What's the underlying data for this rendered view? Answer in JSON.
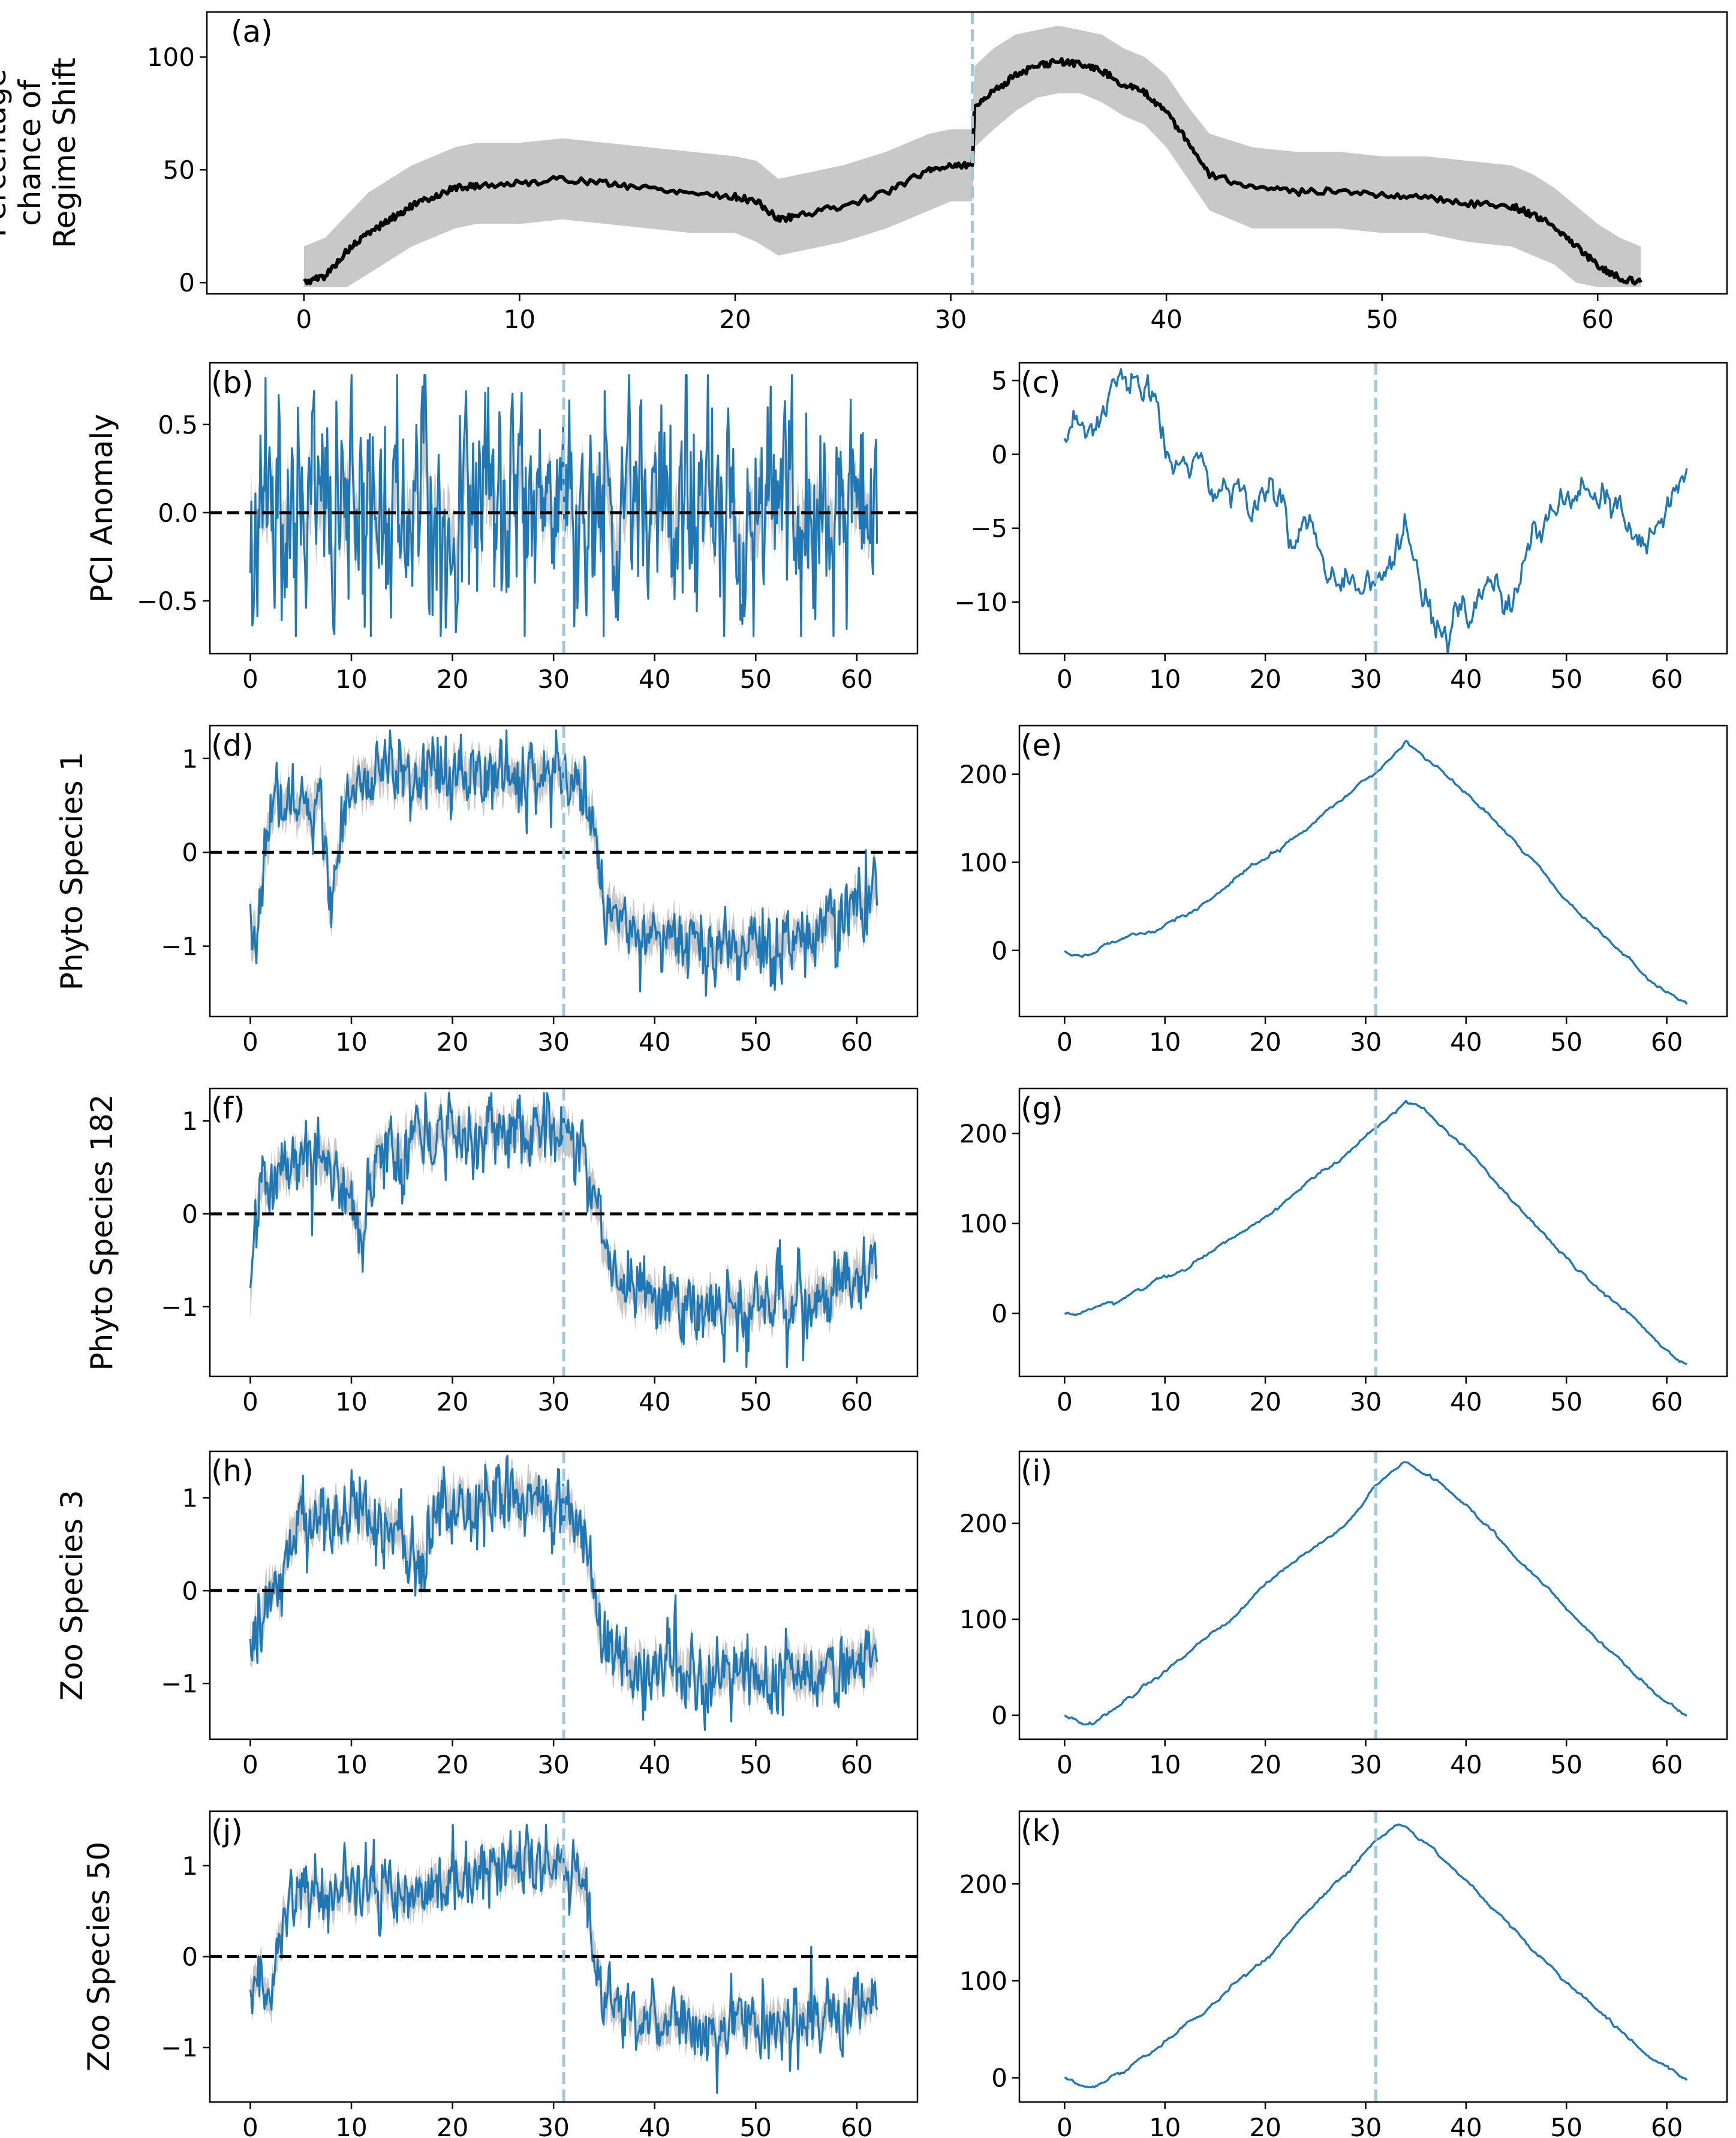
{
  "colors": {
    "series": "#1f77b4",
    "band": "#c8c8c8",
    "threshold": "#9ecae1",
    "axis": "#000000",
    "zero": "#000000"
  },
  "chart_data": [
    {
      "id": "a",
      "panel_label": "(a)",
      "type": "line",
      "ylabel_lines": [
        "Percentage",
        "chance of",
        "Regime Shift"
      ],
      "xlim": [
        -4.5,
        66
      ],
      "ylim": [
        -5,
        120
      ],
      "xticks": [
        0,
        10,
        20,
        30,
        40,
        50,
        60
      ],
      "yticks": [
        0,
        50,
        100
      ],
      "threshold_x": 31,
      "zero_line": false,
      "series": [
        {
          "name": "mean",
          "color": "#000000",
          "x": [
            0,
            1,
            2,
            3,
            4,
            5,
            6,
            7,
            8,
            10,
            12,
            14,
            16,
            18,
            20,
            21,
            22,
            23,
            25,
            27,
            29,
            30,
            31,
            31.1,
            32,
            33,
            34,
            35,
            36,
            37,
            38,
            39,
            40,
            41,
            42,
            44,
            46,
            48,
            50,
            52,
            54,
            56,
            57,
            58,
            59,
            60,
            61,
            62
          ],
          "y": [
            0,
            3,
            14,
            22,
            28,
            34,
            38,
            42,
            43,
            44,
            46,
            44,
            42,
            40,
            38,
            36,
            28,
            30,
            34,
            40,
            50,
            52,
            52,
            78,
            85,
            92,
            96,
            98,
            97,
            94,
            88,
            84,
            76,
            62,
            48,
            42,
            40,
            41,
            39,
            38,
            35,
            34,
            30,
            25,
            16,
            8,
            2,
            0
          ]
        }
      ],
      "band": {
        "x": [
          0,
          1,
          2,
          3,
          4,
          5,
          6,
          7,
          8,
          10,
          12,
          14,
          16,
          18,
          20,
          21,
          22,
          23,
          25,
          27,
          29,
          30,
          31,
          31.1,
          32,
          33,
          34,
          35,
          36,
          37,
          38,
          39,
          40,
          41,
          42,
          44,
          46,
          48,
          50,
          52,
          54,
          56,
          57,
          58,
          59,
          60,
          61,
          62
        ],
        "lower": [
          -2,
          -2,
          -2,
          4,
          10,
          16,
          20,
          24,
          26,
          26,
          28,
          26,
          24,
          22,
          22,
          18,
          12,
          14,
          18,
          24,
          32,
          36,
          36,
          60,
          68,
          76,
          82,
          84,
          84,
          80,
          74,
          70,
          60,
          46,
          32,
          24,
          24,
          24,
          22,
          22,
          18,
          16,
          12,
          8,
          0,
          -2,
          -2,
          -2
        ],
        "upper": [
          16,
          20,
          30,
          40,
          46,
          52,
          56,
          60,
          62,
          62,
          64,
          62,
          60,
          58,
          56,
          54,
          46,
          48,
          52,
          58,
          66,
          68,
          68,
          96,
          104,
          110,
          112,
          114,
          112,
          110,
          104,
          100,
          92,
          78,
          66,
          60,
          58,
          58,
          56,
          56,
          54,
          52,
          48,
          42,
          34,
          26,
          20,
          16
        ]
      },
      "linewidth": 6
    },
    {
      "id": "b",
      "panel_label": "(b)",
      "type": "line",
      "ylabel_lines": [
        "PCI Anomaly"
      ],
      "xlim": [
        -4,
        66
      ],
      "ylim": [
        -0.8,
        0.85
      ],
      "xticks": [
        0,
        10,
        20,
        30,
        40,
        50,
        60
      ],
      "yticks": [
        -0.5,
        0.0,
        0.5
      ],
      "ytick_labels": [
        "−0.5",
        "0.0",
        "0.5"
      ],
      "threshold_x": 31,
      "zero_line": true,
      "noise": {
        "kind": "noise",
        "seed": 11,
        "amp": 0.3,
        "spike_prob": 0.05,
        "spike_amp": 0.35,
        "n": 620,
        "knots_x": [
          0,
          62
        ],
        "knots_y": [
          0,
          0
        ],
        "band_width": 0.15,
        "clip": [
          -0.7,
          0.78
        ]
      }
    },
    {
      "id": "c",
      "panel_label": "(c)",
      "type": "line",
      "ylabel_lines": [],
      "xlim": [
        -4.5,
        66
      ],
      "ylim": [
        -13.5,
        6.2
      ],
      "xticks": [
        0,
        10,
        20,
        30,
        40,
        50,
        60
      ],
      "yticks": [
        -10,
        -5,
        0,
        5
      ],
      "ytick_labels": [
        "−10",
        "−5",
        "0",
        "5"
      ],
      "threshold_x": 31,
      "zero_line": false,
      "noise": {
        "kind": "walk",
        "seed": 23,
        "amp": 0.55,
        "n": 420,
        "knots_x": [
          0,
          3,
          6,
          7,
          9,
          10,
          13,
          17,
          20,
          22,
          26,
          30,
          34,
          37,
          41,
          44,
          48,
          52,
          55,
          58,
          62
        ],
        "knots_y": [
          0,
          2,
          4.5,
          5,
          3,
          0,
          -2,
          -2.5,
          -2,
          -4,
          -6,
          -8,
          -8.5,
          -11,
          -12,
          -9,
          -5,
          -4,
          -5,
          -6,
          -1.5
        ]
      }
    },
    {
      "id": "d",
      "panel_label": "(d)",
      "type": "line",
      "ylabel_lines": [
        "Phyto Species 1"
      ],
      "xlim": [
        -4,
        66
      ],
      "ylim": [
        -1.75,
        1.35
      ],
      "xticks": [
        0,
        10,
        20,
        30,
        40,
        50,
        60
      ],
      "yticks": [
        -1,
        0,
        1
      ],
      "ytick_labels": [
        "−1",
        "0",
        "1"
      ],
      "threshold_x": 31,
      "zero_line": true,
      "noise": {
        "kind": "noise",
        "seed": 37,
        "amp": 0.18,
        "spike_prob": 0.03,
        "spike_amp": 0.35,
        "n": 620,
        "knots_x": [
          0,
          0.5,
          2,
          3,
          5,
          7,
          8,
          9,
          10,
          20,
          30,
          32,
          33,
          34,
          35,
          37,
          45,
          53,
          58,
          62
        ],
        "knots_y": [
          -1.0,
          -0.8,
          0.3,
          0.6,
          0.4,
          0.6,
          -0.7,
          0.2,
          0.8,
          0.8,
          0.8,
          0.75,
          0.7,
          0.3,
          -0.5,
          -0.8,
          -1.0,
          -1.0,
          -0.8,
          -0.4
        ],
        "band_width": 0.18,
        "clip": [
          -1.6,
          1.3
        ]
      }
    },
    {
      "id": "e",
      "panel_label": "(e)",
      "type": "line",
      "ylabel_lines": [],
      "xlim": [
        -4.5,
        66
      ],
      "ylim": [
        -75,
        255
      ],
      "xticks": [
        0,
        10,
        20,
        30,
        40,
        50,
        60
      ],
      "yticks": [
        0,
        100,
        200
      ],
      "ytick_labels": [
        "0",
        "100",
        "200"
      ],
      "threshold_x": 31,
      "zero_line": false,
      "noise": {
        "kind": "smooth",
        "seed": 41,
        "amp": 0.8,
        "n": 420,
        "knots_x": [
          0,
          1,
          3,
          5,
          7,
          8,
          9,
          12,
          20,
          28,
          31,
          34,
          40,
          50,
          58,
          62
        ],
        "knots_y": [
          0,
          -5,
          0,
          10,
          20,
          18,
          22,
          40,
          105,
          175,
          200,
          237,
          180,
          60,
          -30,
          -60
        ]
      }
    },
    {
      "id": "f",
      "panel_label": "(f)",
      "type": "line",
      "ylabel_lines": [
        "Phyto Species 182"
      ],
      "xlim": [
        -4,
        66
      ],
      "ylim": [
        -1.75,
        1.35
      ],
      "xticks": [
        0,
        10,
        20,
        30,
        40,
        50,
        60
      ],
      "yticks": [
        -1,
        0,
        1
      ],
      "ytick_labels": [
        "−1",
        "0",
        "1"
      ],
      "threshold_x": 31,
      "zero_line": true,
      "noise": {
        "kind": "noise",
        "seed": 53,
        "amp": 0.2,
        "spike_prob": 0.03,
        "spike_amp": 0.35,
        "n": 620,
        "knots_x": [
          0,
          0.5,
          2,
          4,
          6,
          8,
          10,
          11,
          12,
          14,
          20,
          30,
          33,
          34,
          35,
          37,
          45,
          50,
          58,
          62
        ],
        "knots_y": [
          -1.0,
          0.0,
          0.3,
          0.5,
          0.5,
          0.6,
          0.2,
          -0.3,
          0.5,
          0.8,
          0.9,
          0.85,
          0.6,
          0.2,
          -0.4,
          -0.9,
          -1.0,
          -1.0,
          -0.8,
          -0.5
        ],
        "band_width": 0.18,
        "clip": [
          -1.65,
          1.3
        ]
      }
    },
    {
      "id": "g",
      "panel_label": "(g)",
      "type": "line",
      "ylabel_lines": [],
      "xlim": [
        -4.5,
        66
      ],
      "ylim": [
        -70,
        250
      ],
      "xticks": [
        0,
        10,
        20,
        30,
        40,
        50,
        60
      ],
      "yticks": [
        0,
        100,
        200
      ],
      "ytick_labels": [
        "0",
        "100",
        "200"
      ],
      "threshold_x": 31,
      "zero_line": false,
      "noise": {
        "kind": "smooth",
        "seed": 61,
        "amp": 0.8,
        "n": 420,
        "knots_x": [
          0,
          2,
          5,
          8,
          10,
          12,
          20,
          28,
          31,
          34,
          35,
          40,
          50,
          58,
          62
        ],
        "knots_y": [
          0,
          2,
          12,
          30,
          42,
          48,
          110,
          175,
          205,
          232,
          232,
          180,
          60,
          -20,
          -55
        ]
      }
    },
    {
      "id": "h",
      "panel_label": "(h)",
      "type": "line",
      "ylabel_lines": [
        "Zoo Species 3"
      ],
      "xlim": [
        -4,
        66
      ],
      "ylim": [
        -1.6,
        1.5
      ],
      "xticks": [
        0,
        10,
        20,
        30,
        40,
        50,
        60
      ],
      "yticks": [
        -1,
        0,
        1
      ],
      "ytick_labels": [
        "−1",
        "0",
        "1"
      ],
      "threshold_x": 31,
      "zero_line": true,
      "noise": {
        "kind": "noise",
        "seed": 71,
        "amp": 0.2,
        "spike_prob": 0.03,
        "spike_amp": 0.4,
        "n": 620,
        "knots_x": [
          0,
          1,
          2,
          3,
          4,
          6,
          10,
          14,
          17,
          18,
          20,
          30,
          33,
          34,
          35,
          37,
          45,
          55,
          62
        ],
        "knots_y": [
          -0.6,
          -0.3,
          0.1,
          -0.1,
          0.7,
          0.8,
          0.8,
          0.7,
          0.3,
          0.9,
          1.0,
          1.0,
          0.6,
          0.0,
          -0.6,
          -0.8,
          -0.9,
          -0.9,
          -0.7
        ],
        "band_width": 0.18,
        "clip": [
          -1.5,
          1.45
        ]
      }
    },
    {
      "id": "i",
      "panel_label": "(i)",
      "type": "line",
      "ylabel_lines": [],
      "xlim": [
        -4.5,
        66
      ],
      "ylim": [
        -25,
        275
      ],
      "xticks": [
        0,
        10,
        20,
        30,
        40,
        50,
        60
      ],
      "yticks": [
        0,
        100,
        200
      ],
      "ytick_labels": [
        "0",
        "100",
        "200"
      ],
      "threshold_x": 31,
      "zero_line": false,
      "noise": {
        "kind": "smooth",
        "seed": 83,
        "amp": 0.8,
        "n": 420,
        "knots_x": [
          0,
          2,
          3,
          5,
          10,
          17,
          20,
          28,
          31,
          34,
          40,
          50,
          58,
          62
        ],
        "knots_y": [
          0,
          -7,
          -8,
          5,
          45,
          105,
          135,
          200,
          238,
          265,
          220,
          110,
          30,
          0
        ]
      }
    },
    {
      "id": "j",
      "panel_label": "(j)",
      "type": "line",
      "ylabel_lines": [
        "Zoo Species 50"
      ],
      "xlim": [
        -4,
        66
      ],
      "ylim": [
        -1.6,
        1.6
      ],
      "xticks": [
        0,
        10,
        20,
        30,
        40,
        50,
        60
      ],
      "yticks": [
        -1,
        0,
        1
      ],
      "ytick_labels": [
        "−1",
        "0",
        "1"
      ],
      "threshold_x": 31,
      "zero_line": true,
      "noise": {
        "kind": "noise",
        "seed": 97,
        "amp": 0.18,
        "spike_prob": 0.03,
        "spike_amp": 0.4,
        "n": 620,
        "knots_x": [
          0,
          1,
          2,
          3,
          4,
          6,
          8,
          10,
          14,
          16,
          20,
          25,
          30,
          33,
          34,
          35,
          37,
          45,
          55,
          62
        ],
        "knots_y": [
          -0.4,
          -0.1,
          -0.6,
          0.3,
          0.6,
          0.7,
          0.6,
          0.7,
          0.7,
          0.6,
          0.9,
          1.0,
          1.0,
          0.8,
          0.2,
          -0.5,
          -0.7,
          -0.8,
          -0.7,
          -0.5
        ],
        "band_width": 0.16,
        "clip": [
          -1.5,
          1.45
        ]
      }
    },
    {
      "id": "k",
      "panel_label": "(k)",
      "type": "line",
      "ylabel_lines": [],
      "xlim": [
        -4.5,
        66
      ],
      "ylim": [
        -25,
        275
      ],
      "xticks": [
        0,
        10,
        20,
        30,
        40,
        50,
        60
      ],
      "yticks": [
        0,
        100,
        200
      ],
      "ytick_labels": [
        "0",
        "100",
        "200"
      ],
      "threshold_x": 31,
      "zero_line": false,
      "noise": {
        "kind": "smooth",
        "seed": 109,
        "amp": 0.8,
        "n": 420,
        "knots_x": [
          0,
          2,
          3,
          5,
          10,
          20,
          28,
          31,
          33,
          34,
          40,
          50,
          58,
          62
        ],
        "knots_y": [
          0,
          -8,
          -10,
          2,
          35,
          125,
          210,
          245,
          258,
          258,
          205,
          100,
          25,
          0
        ]
      }
    }
  ]
}
